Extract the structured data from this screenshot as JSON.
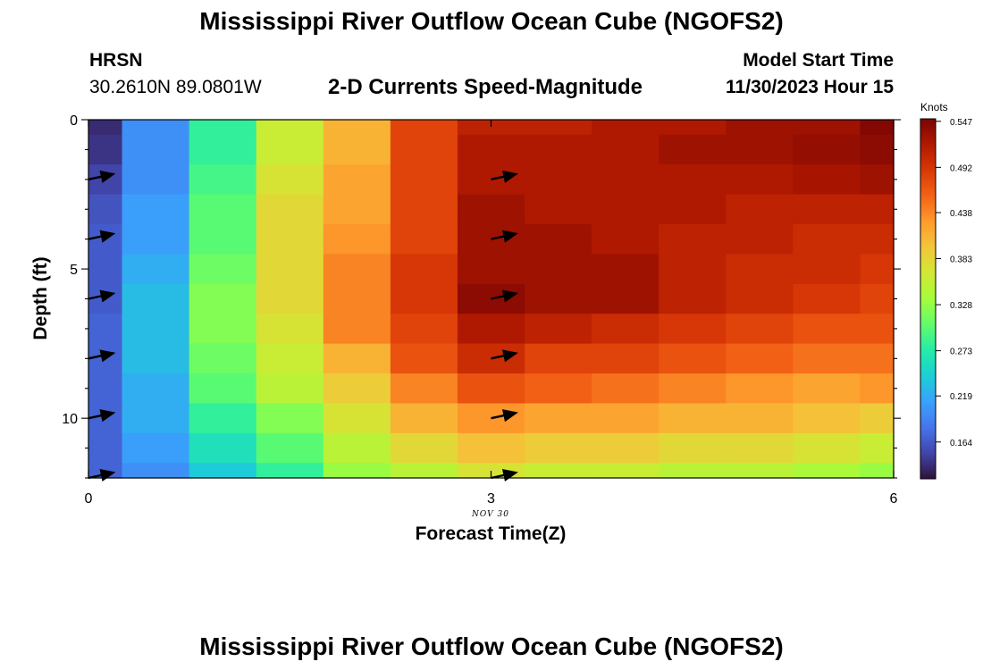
{
  "header": {
    "title": "Mississippi River Outflow Ocean Cube (NGOFS2)",
    "station": "HRSN",
    "coords": "30.2610N  89.0801W",
    "product": "2-D Currents Speed-Magnitude",
    "model_start_label": "Model Start Time",
    "model_start_value": "11/30/2023 Hour 15"
  },
  "footer": {
    "title": "Mississippi River Outflow Ocean Cube (NGOFS2)"
  },
  "chart_data": {
    "type": "heatmap",
    "xlabel": "Forecast Time(Z)",
    "ylabel": "Depth (ft)",
    "x_date_label": "NOV 30",
    "xlim": [
      0,
      6
    ],
    "ylim": [
      0,
      12
    ],
    "x_ticks": [
      "0",
      "3",
      "6"
    ],
    "y_ticks": [
      "0",
      "5",
      "10"
    ],
    "colorbar": {
      "label": "Knots",
      "min": 0.12,
      "max": 0.55,
      "ticks": [
        "0.547",
        "0.492",
        "0.438",
        "0.383",
        "0.328",
        "0.273",
        "0.219",
        "0.164"
      ]
    },
    "x_edges": [
      0,
      0.25,
      0.75,
      1.25,
      1.75,
      2.25,
      2.75,
      3.25,
      3.75,
      4.25,
      4.75,
      5.25,
      5.75,
      6
    ],
    "y_edges": [
      0,
      0.5,
      1.5,
      2.5,
      3.5,
      4.5,
      5.5,
      6.5,
      7.5,
      8.5,
      9.5,
      10.5,
      11.5,
      12
    ],
    "values": [
      [
        0.135,
        0.2,
        0.28,
        0.36,
        0.41,
        0.48,
        0.51,
        0.51,
        0.52,
        0.52,
        0.53,
        0.53,
        0.545
      ],
      [
        0.14,
        0.2,
        0.28,
        0.36,
        0.41,
        0.48,
        0.52,
        0.52,
        0.52,
        0.53,
        0.53,
        0.535,
        0.54
      ],
      [
        0.15,
        0.2,
        0.29,
        0.37,
        0.42,
        0.48,
        0.52,
        0.52,
        0.52,
        0.52,
        0.52,
        0.525,
        0.53
      ],
      [
        0.16,
        0.21,
        0.3,
        0.38,
        0.42,
        0.48,
        0.53,
        0.52,
        0.52,
        0.52,
        0.51,
        0.51,
        0.51
      ],
      [
        0.165,
        0.21,
        0.3,
        0.38,
        0.43,
        0.48,
        0.53,
        0.53,
        0.52,
        0.51,
        0.51,
        0.5,
        0.5
      ],
      [
        0.165,
        0.22,
        0.31,
        0.38,
        0.44,
        0.49,
        0.53,
        0.53,
        0.53,
        0.51,
        0.5,
        0.5,
        0.49
      ],
      [
        0.165,
        0.23,
        0.32,
        0.38,
        0.44,
        0.49,
        0.54,
        0.53,
        0.53,
        0.51,
        0.5,
        0.49,
        0.48
      ],
      [
        0.17,
        0.23,
        0.32,
        0.37,
        0.44,
        0.48,
        0.52,
        0.51,
        0.5,
        0.49,
        0.48,
        0.47,
        0.47
      ],
      [
        0.17,
        0.23,
        0.31,
        0.36,
        0.41,
        0.47,
        0.5,
        0.48,
        0.48,
        0.47,
        0.46,
        0.45,
        0.45
      ],
      [
        0.17,
        0.22,
        0.3,
        0.35,
        0.39,
        0.44,
        0.47,
        0.46,
        0.45,
        0.44,
        0.43,
        0.42,
        0.43
      ],
      [
        0.17,
        0.22,
        0.28,
        0.32,
        0.37,
        0.41,
        0.43,
        0.42,
        0.42,
        0.41,
        0.41,
        0.4,
        0.39
      ],
      [
        0.17,
        0.21,
        0.26,
        0.3,
        0.35,
        0.38,
        0.4,
        0.39,
        0.39,
        0.38,
        0.38,
        0.37,
        0.36
      ],
      [
        0.17,
        0.2,
        0.24,
        0.28,
        0.33,
        0.35,
        0.37,
        0.36,
        0.36,
        0.35,
        0.35,
        0.34,
        0.33
      ]
    ],
    "vectors": [
      {
        "x": 0,
        "depth": 2
      },
      {
        "x": 0,
        "depth": 4
      },
      {
        "x": 0,
        "depth": 6
      },
      {
        "x": 0,
        "depth": 8
      },
      {
        "x": 0,
        "depth": 10
      },
      {
        "x": 0,
        "depth": 12
      },
      {
        "x": 3,
        "depth": 2
      },
      {
        "x": 3,
        "depth": 4
      },
      {
        "x": 3,
        "depth": 6
      },
      {
        "x": 3,
        "depth": 8
      },
      {
        "x": 3,
        "depth": 10
      },
      {
        "x": 3,
        "depth": 12
      }
    ],
    "colors": {
      "cmap": [
        "#30123b",
        "#4145ab",
        "#4675ed",
        "#39a2fc",
        "#1bcfd4",
        "#24eca6",
        "#61fc6c",
        "#a4fc3b",
        "#d1e834",
        "#f3c63a",
        "#fe9b2d",
        "#f36315",
        "#d93806",
        "#b11901",
        "#7a0403"
      ],
      "arrow": "#000000"
    }
  }
}
